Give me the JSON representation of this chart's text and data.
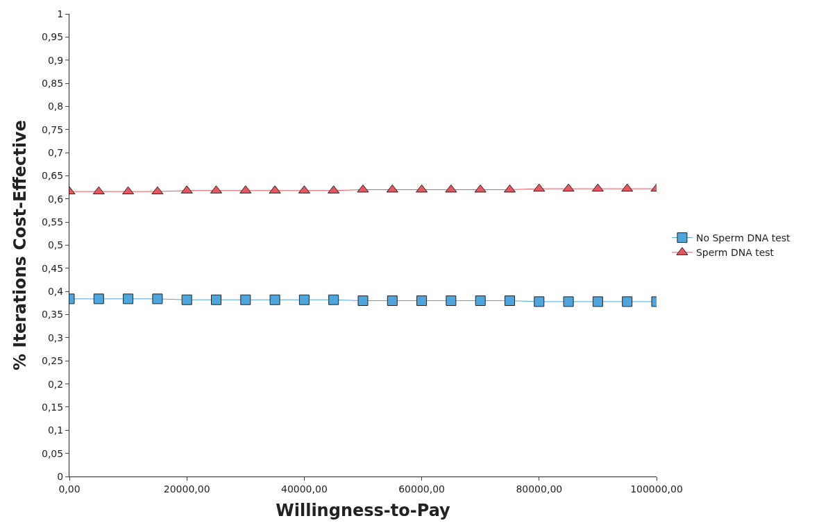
{
  "chart_data": {
    "type": "line",
    "xlabel": "Willingness-to-Pay",
    "ylabel": "% Iterations Cost-Effective",
    "x": [
      0,
      5000,
      10000,
      15000,
      20000,
      25000,
      30000,
      35000,
      40000,
      45000,
      50000,
      55000,
      60000,
      65000,
      70000,
      75000,
      80000,
      85000,
      90000,
      95000,
      100000
    ],
    "series": [
      {
        "name": "No Sperm DNA test",
        "color": "#4ea6dc",
        "marker": "square",
        "values": [
          0.384,
          0.384,
          0.384,
          0.384,
          0.382,
          0.382,
          0.382,
          0.382,
          0.382,
          0.382,
          0.38,
          0.38,
          0.38,
          0.38,
          0.38,
          0.38,
          0.378,
          0.378,
          0.378,
          0.378,
          0.378
        ]
      },
      {
        "name": "Sperm DNA test",
        "color": "#e8565f",
        "marker": "triangle",
        "values": [
          0.616,
          0.616,
          0.616,
          0.616,
          0.618,
          0.618,
          0.618,
          0.618,
          0.618,
          0.618,
          0.62,
          0.62,
          0.62,
          0.62,
          0.62,
          0.62,
          0.622,
          0.622,
          0.622,
          0.622,
          0.622
        ]
      }
    ],
    "xlim": [
      0,
      100000
    ],
    "xticks": [
      {
        "value": 0,
        "label": "0,00"
      },
      {
        "value": 20000,
        "label": "20000,00"
      },
      {
        "value": 40000,
        "label": "40000,00"
      },
      {
        "value": 60000,
        "label": "60000,00"
      },
      {
        "value": 80000,
        "label": "80000,00"
      },
      {
        "value": 100000,
        "label": "100000,00"
      }
    ],
    "ylim": [
      0,
      1
    ],
    "yticks": [
      0,
      {
        "value": 0.05,
        "label": "0,05"
      },
      {
        "value": 0.1,
        "label": "0,1"
      },
      {
        "value": 0.15,
        "label": "0,15"
      },
      {
        "value": 0.2,
        "label": "0,2"
      },
      {
        "value": 0.25,
        "label": "0,25"
      },
      {
        "value": 0.3,
        "label": "0,3"
      },
      {
        "value": 0.35,
        "label": "0,35"
      },
      {
        "value": 0.4,
        "label": "0,4"
      },
      {
        "value": 0.45,
        "label": "0,45"
      },
      {
        "value": 0.5,
        "label": "0,5"
      },
      {
        "value": 0.55,
        "label": "0,55"
      },
      {
        "value": 0.6,
        "label": "0,6"
      },
      {
        "value": 0.65,
        "label": "0,65"
      },
      {
        "value": 0.7,
        "label": "0,7"
      },
      {
        "value": 0.75,
        "label": "0,75"
      },
      {
        "value": 0.8,
        "label": "0,8"
      },
      {
        "value": 0.85,
        "label": "0,85"
      },
      {
        "value": 0.9,
        "label": "0,9"
      },
      {
        "value": 0.95,
        "label": "0,95"
      },
      1
    ],
    "legend": "right",
    "line_style": "solid"
  }
}
